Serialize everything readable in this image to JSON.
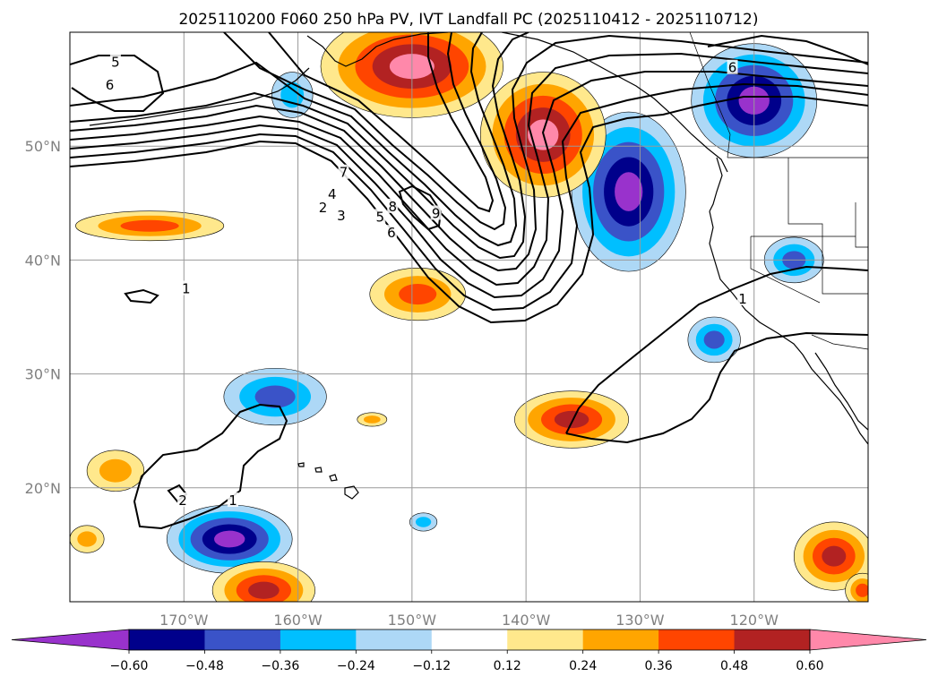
{
  "chart_data": {
    "type": "map-contour",
    "title": "2025110200 F060 250 hPa PV, IVT Landfall PC (2025110412 - 2025110712)",
    "projection": "PlateCarree",
    "lon_range": [
      -180,
      -110
    ],
    "lat_range": [
      10,
      60
    ],
    "x_ticks": [
      {
        "lon": -170,
        "label": "170°W"
      },
      {
        "lon": -160,
        "label": "160°W"
      },
      {
        "lon": -150,
        "label": "150°W"
      },
      {
        "lon": -140,
        "label": "140°W"
      },
      {
        "lon": -130,
        "label": "130°W"
      },
      {
        "lon": -120,
        "label": "120°W"
      }
    ],
    "y_ticks": [
      {
        "lat": 50,
        "label": "50°N"
      },
      {
        "lat": 40,
        "label": "40°N"
      },
      {
        "lat": 30,
        "label": "30°N"
      },
      {
        "lat": 20,
        "label": "20°N"
      }
    ],
    "grid": true,
    "colorbar": {
      "orientation": "horizontal",
      "extend": "both",
      "levels": [
        -0.72,
        -0.6,
        -0.48,
        -0.36,
        -0.24,
        -0.12,
        0.12,
        0.24,
        0.36,
        0.48,
        0.6,
        0.72
      ],
      "tick_labels": [
        "−0.60",
        "−0.48",
        "−0.36",
        "−0.24",
        "−0.12",
        "0.12",
        "0.24",
        "0.36",
        "0.48",
        "0.60"
      ],
      "colors": [
        "#9932cc",
        "#00008b",
        "#3a53c8",
        "#00bfff",
        "#add8f6",
        "#ffffff",
        "#ffe88c",
        "#ffa500",
        "#ff4500",
        "#b22222",
        "#ff88aa"
      ]
    },
    "pv_contour_labels": [
      {
        "text": "5",
        "lon": -176,
        "lat": 57.3
      },
      {
        "text": "6",
        "lon": -176.5,
        "lat": 55.3
      },
      {
        "text": "7",
        "lon": -156,
        "lat": 47.6
      },
      {
        "text": "4",
        "lon": -157,
        "lat": 45.7
      },
      {
        "text": "2",
        "lon": -157.8,
        "lat": 44.5
      },
      {
        "text": "3",
        "lon": -156.2,
        "lat": 43.8
      },
      {
        "text": "5",
        "lon": -152.8,
        "lat": 43.7
      },
      {
        "text": "8",
        "lon": -151.7,
        "lat": 44.6
      },
      {
        "text": "6",
        "lon": -151.8,
        "lat": 42.3
      },
      {
        "text": "9",
        "lon": -147.9,
        "lat": 44.0
      },
      {
        "text": "1",
        "lon": -169.8,
        "lat": 37.4
      },
      {
        "text": "1",
        "lon": -121.0,
        "lat": 36.5
      },
      {
        "text": "6",
        "lon": -121.9,
        "lat": 56.8
      },
      {
        "text": "2",
        "lon": -170.1,
        "lat": 18.8
      },
      {
        "text": "1",
        "lon": -165.7,
        "lat": 18.8
      }
    ],
    "ivt_pc_features": [
      {
        "sign": "negative",
        "lon": -120.0,
        "lat": 54.0,
        "rx": 5.5,
        "ry": 5.0,
        "min": -0.72
      },
      {
        "sign": "negative",
        "lon": -131.0,
        "lat": 46.0,
        "rx": 5.0,
        "ry": 7.0,
        "min": -0.6
      },
      {
        "sign": "negative",
        "lon": -116.5,
        "lat": 40.0,
        "rx": 2.6,
        "ry": 2.0,
        "min": -0.36
      },
      {
        "sign": "negative",
        "lon": -123.5,
        "lat": 33.0,
        "rx": 2.3,
        "ry": 2.0,
        "min": -0.36
      },
      {
        "sign": "negative",
        "lon": -162.0,
        "lat": 28.0,
        "rx": 4.5,
        "ry": 2.5,
        "min": -0.36
      },
      {
        "sign": "negative",
        "lon": -166.0,
        "lat": 15.5,
        "rx": 5.5,
        "ry": 3.0,
        "min": -0.6
      },
      {
        "sign": "negative",
        "lon": -149.0,
        "lat": 17.0,
        "rx": 1.2,
        "ry": 0.8,
        "min": -0.24
      },
      {
        "sign": "negative",
        "lon": -160.5,
        "lat": 54.5,
        "rx": 1.8,
        "ry": 2.0,
        "min": -0.24
      },
      {
        "sign": "positive",
        "lon": -150.0,
        "lat": 57.0,
        "rx": 8.0,
        "ry": 4.5,
        "max": 0.6
      },
      {
        "sign": "positive",
        "lon": -138.5,
        "lat": 51.0,
        "rx": 5.5,
        "ry": 5.5,
        "max": 0.6
      },
      {
        "sign": "positive",
        "lon": -149.5,
        "lat": 37.0,
        "rx": 4.2,
        "ry": 2.3,
        "max": 0.36
      },
      {
        "sign": "positive",
        "lon": -173.0,
        "lat": 43.0,
        "rx": 6.5,
        "ry": 1.3,
        "max": 0.36
      },
      {
        "sign": "positive",
        "lon": -136.0,
        "lat": 26.0,
        "rx": 5.0,
        "ry": 2.5,
        "max": 0.48
      },
      {
        "sign": "positive",
        "lon": -176.0,
        "lat": 21.5,
        "rx": 2.5,
        "ry": 1.8,
        "max": 0.24
      },
      {
        "sign": "positive",
        "lon": -113.0,
        "lat": 14.0,
        "rx": 3.5,
        "ry": 3.0,
        "max": 0.48
      },
      {
        "sign": "positive",
        "lon": -163.0,
        "lat": 11.0,
        "rx": 4.5,
        "ry": 2.5,
        "max": 0.48
      },
      {
        "sign": "positive",
        "lon": -178.5,
        "lat": 15.5,
        "rx": 1.5,
        "ry": 1.2,
        "max": 0.24
      },
      {
        "sign": "positive",
        "lon": -153.5,
        "lat": 26.0,
        "rx": 1.3,
        "ry": 0.6,
        "max": 0.24
      },
      {
        "sign": "positive",
        "lon": -110.5,
        "lat": 11.0,
        "rx": 1.5,
        "ry": 1.5,
        "max": 0.36
      }
    ]
  }
}
